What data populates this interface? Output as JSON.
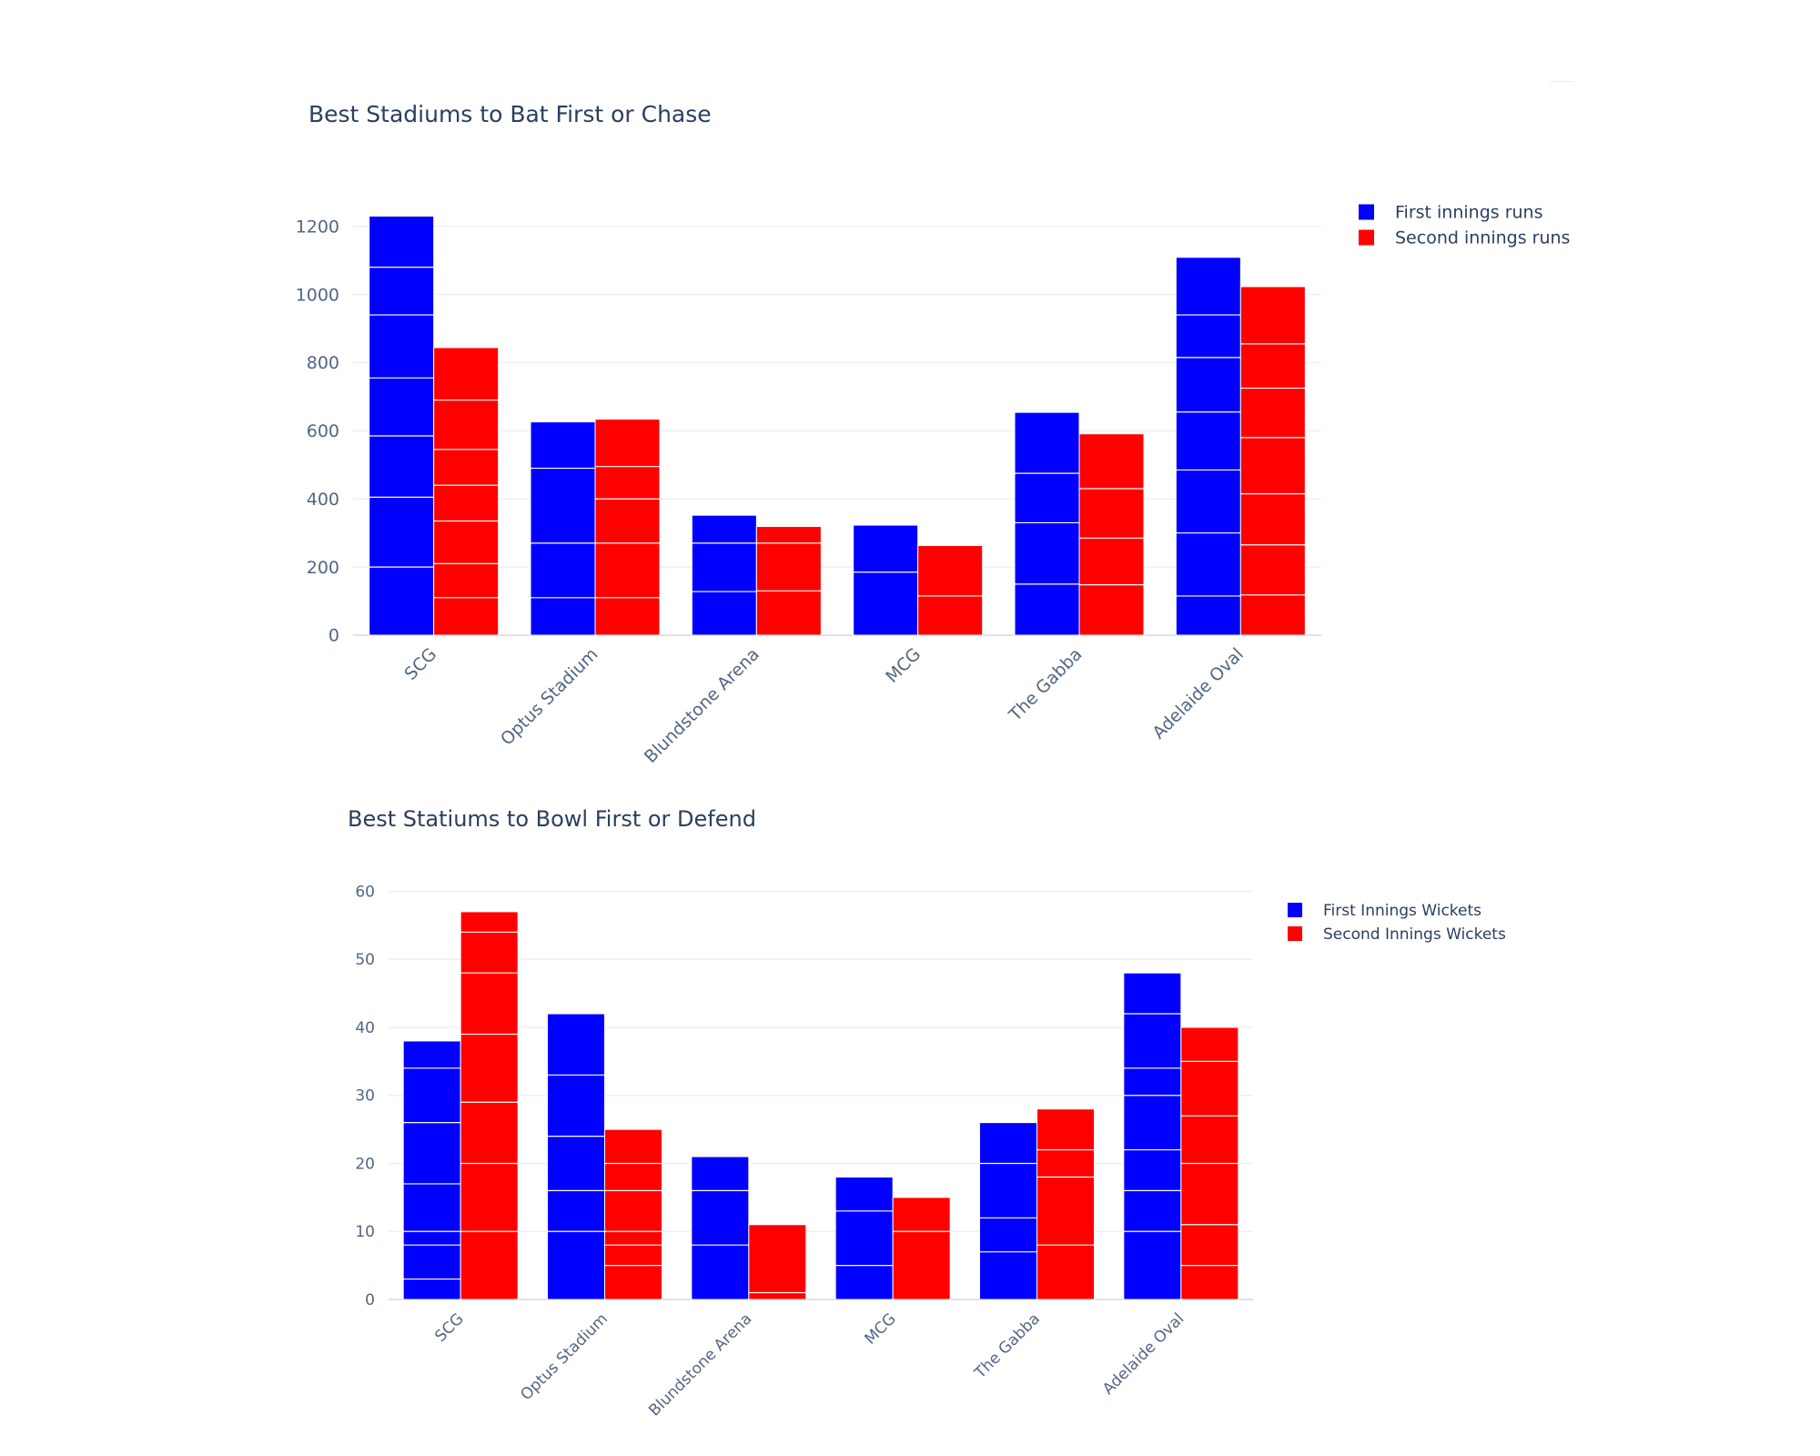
{
  "chart_data": [
    {
      "type": "bar",
      "title": "Best Stadiums to Bat First or Chase",
      "xlabel": "",
      "ylabel": "",
      "categories": [
        "SCG",
        "Optus Stadium",
        "Blundstone Arena",
        "MCG",
        "The Gabba",
        "Adelaide Oval"
      ],
      "ylim": [
        0,
        1250
      ],
      "yticks": [
        0,
        200,
        400,
        600,
        800,
        1000,
        1200
      ],
      "grid": true,
      "legend": "top-right",
      "barmode": "group",
      "series": [
        {
          "name": "First innings runs",
          "color": "#0000ff",
          "values": [
            1230,
            626,
            352,
            323,
            654,
            1109
          ],
          "segment_boundaries": [
            [
              200,
              405,
              585,
              755,
              940,
              1080
            ],
            [
              110,
              270,
              490
            ],
            [
              128,
              270
            ],
            [
              185
            ],
            [
              150,
              330,
              475
            ],
            [
              115,
              300,
              485,
              655,
              815,
              940
            ]
          ]
        },
        {
          "name": "Second innings runs",
          "color": "#ff0000",
          "values": [
            844,
            634,
            319,
            263,
            591,
            1023
          ],
          "segment_boundaries": [
            [
              110,
              210,
              335,
              440,
              545,
              690
            ],
            [
              110,
              270,
              400,
              495
            ],
            [
              130,
              270
            ],
            [
              115
            ],
            [
              148,
              285,
              430
            ],
            [
              118,
              265,
              415,
              580,
              725,
              855
            ]
          ]
        }
      ]
    },
    {
      "type": "bar",
      "title": "Best Statiums to Bowl First or Defend",
      "xlabel": "",
      "ylabel": "",
      "categories": [
        "SCG",
        "Optus Stadium",
        "Blundstone Arena",
        "MCG",
        "The Gabba",
        "Adelaide Oval"
      ],
      "ylim": [
        0,
        61
      ],
      "yticks": [
        0,
        10,
        20,
        30,
        40,
        50,
        60
      ],
      "grid": true,
      "legend": "top-right",
      "barmode": "group",
      "series": [
        {
          "name": "First Innings Wickets",
          "color": "#0000ff",
          "values": [
            38,
            42,
            21,
            18,
            26,
            48
          ],
          "segment_boundaries": [
            [
              3,
              8,
              10,
              17,
              26,
              34
            ],
            [
              10,
              16,
              24,
              33
            ],
            [
              8,
              16
            ],
            [
              5,
              13
            ],
            [
              7,
              12,
              20
            ],
            [
              10,
              16,
              22,
              30,
              34,
              42
            ]
          ]
        },
        {
          "name": "Second Innings Wickets",
          "color": "#ff0000",
          "values": [
            57,
            25,
            11,
            15,
            28,
            40
          ],
          "segment_boundaries": [
            [
              10,
              20,
              29,
              39,
              48,
              54
            ],
            [
              5,
              8,
              10,
              16,
              20
            ],
            [
              1
            ],
            [
              10
            ],
            [
              8,
              18,
              22
            ],
            [
              5,
              11,
              20,
              27,
              35
            ]
          ]
        }
      ]
    }
  ]
}
